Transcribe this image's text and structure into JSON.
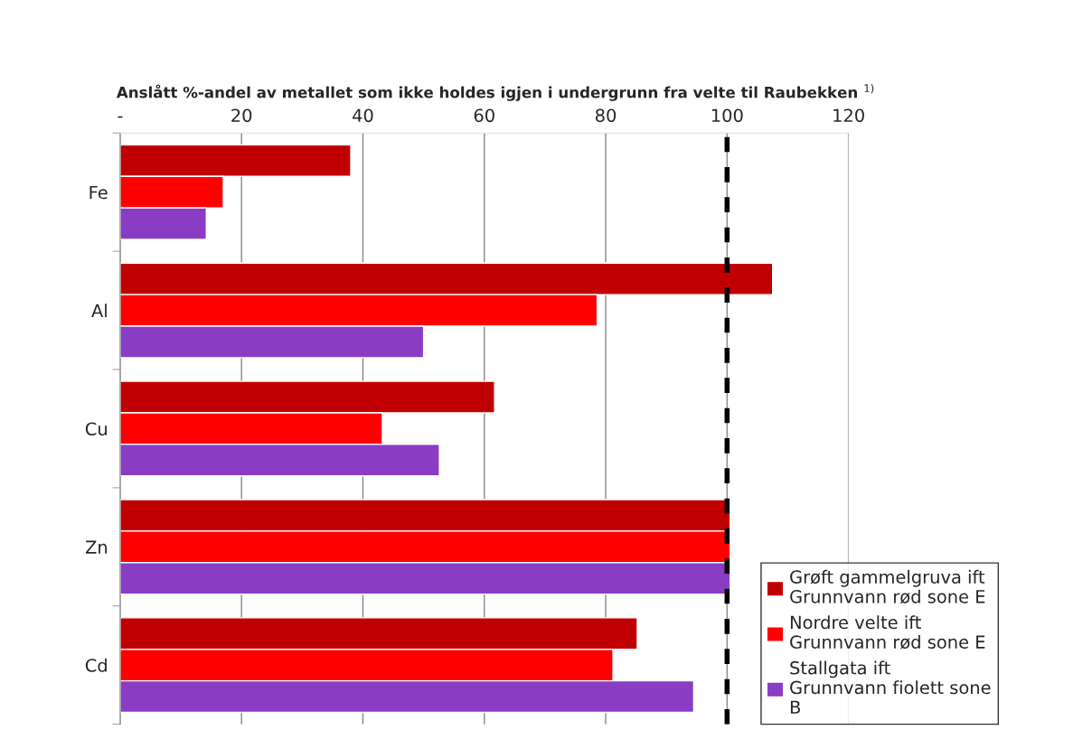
{
  "chart_data": {
    "type": "bar",
    "orientation": "horizontal",
    "title": "Anslått %-andel av metallet som ikke holdes igjen i undergrunn fra velte til Raubekken $^{1)}$",
    "categories": [
      "Fe",
      "Al",
      "Cu",
      "Zn",
      "Cd"
    ],
    "series": [
      {
        "name": "Grøft gammelgruva ift Grunnvann rød sone E",
        "color": "#c00000",
        "values": [
          38,
          107.5,
          61.7,
          100.5,
          85.2
        ]
      },
      {
        "name": "Nordre velte ift  Grunnvann rød sone E",
        "color": "#ff0000",
        "values": [
          17,
          78.6,
          43.2,
          100.5,
          81.2
        ]
      },
      {
        "name": "Stallgata ift  Grunnvann fiolett sone B",
        "color": "#8a3cc4",
        "values": [
          14.2,
          50,
          52.6,
          100.5,
          94.5
        ]
      }
    ],
    "xlim": [
      0,
      120
    ],
    "xticks": [
      {
        "value": 0,
        "label": "-"
      },
      20,
      40,
      60,
      80,
      100,
      120
    ],
    "grid": "x",
    "legend": "bottom right",
    "ref_lines": [
      {
        "axis": "x",
        "value": 100,
        "color": "#000000",
        "line_style": "dashed"
      }
    ]
  }
}
